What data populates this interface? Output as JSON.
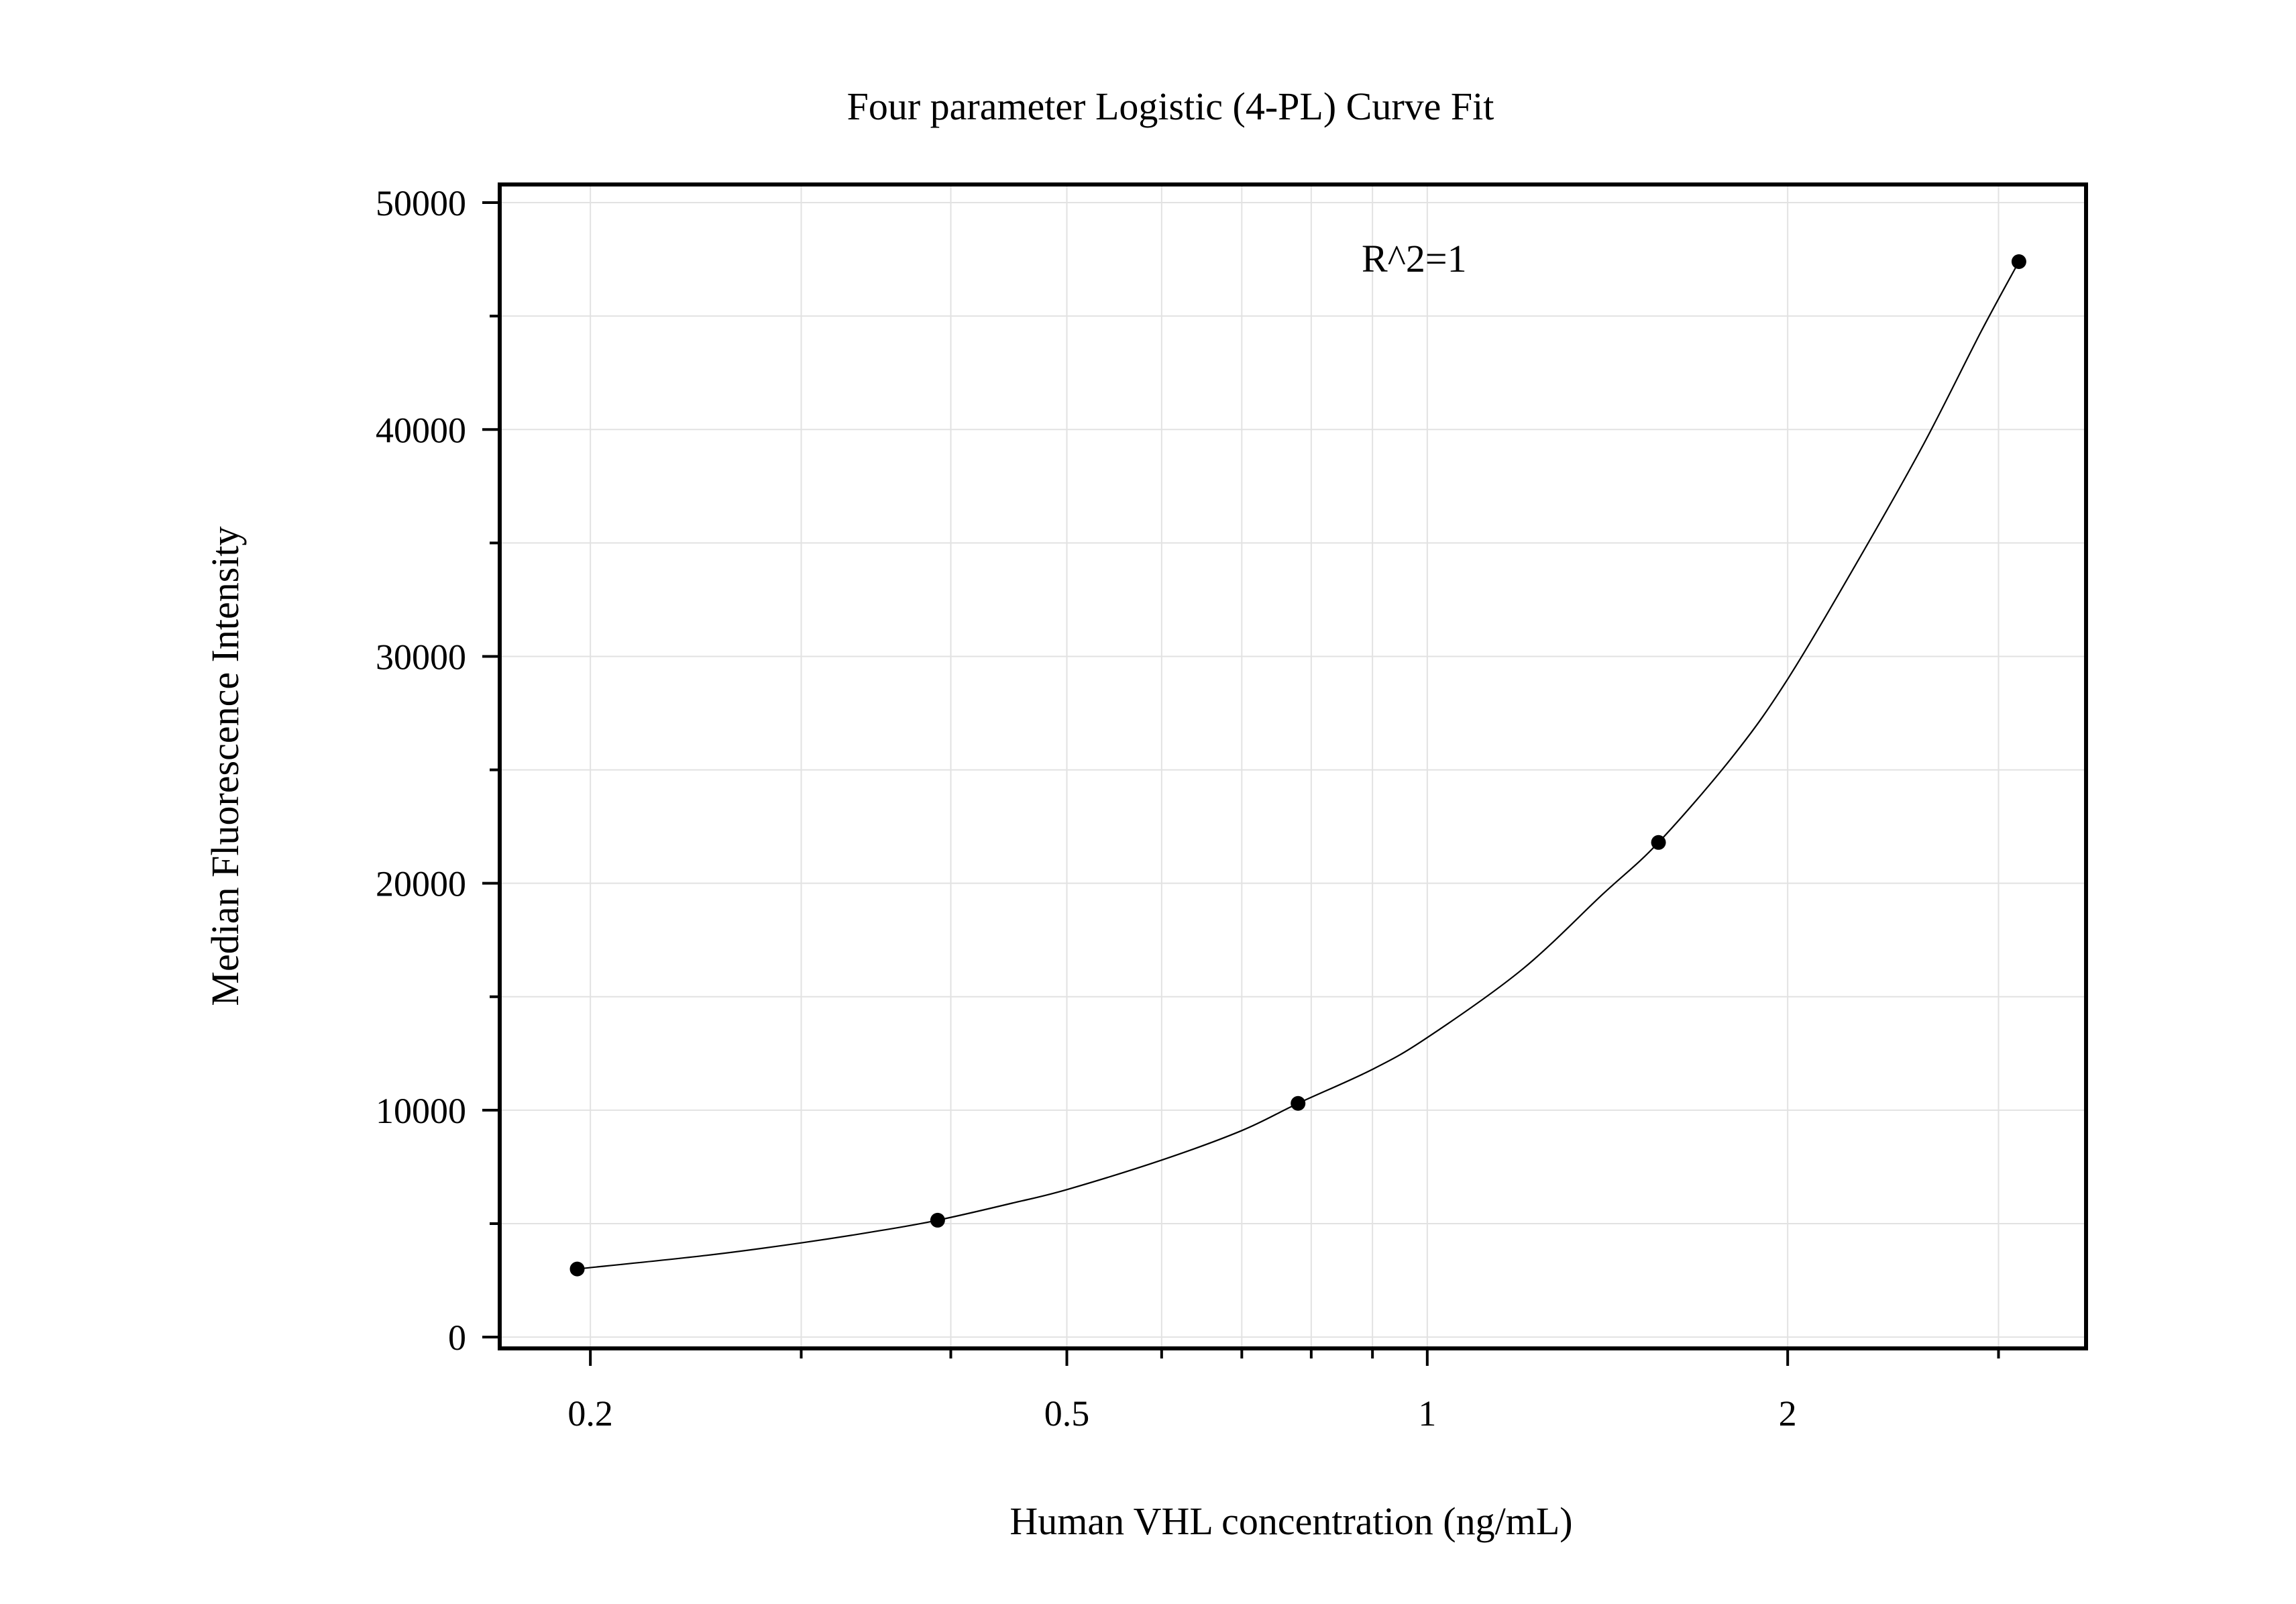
{
  "chart_data": {
    "type": "scatter",
    "title": "Four parameter Logistic (4-PL) Curve Fit",
    "xlabel": "Human VHL concentration (ng/mL)",
    "ylabel": "Median Fluorescence Intensity",
    "annotation": "R^2=1",
    "x_scale": "log",
    "xlim": [
      0.168,
      3.55
    ],
    "ylim": [
      -500,
      50800
    ],
    "x_ticks": [
      {
        "value": 0.2,
        "label": "0.2"
      },
      {
        "value": 0.5,
        "label": "0.5"
      },
      {
        "value": 1,
        "label": "1"
      },
      {
        "value": 2,
        "label": "2"
      }
    ],
    "x_minor_ticks": [
      0.3,
      0.4,
      0.6,
      0.7,
      0.8,
      0.9,
      3
    ],
    "y_ticks": [
      {
        "value": 0,
        "label": "0"
      },
      {
        "value": 10000,
        "label": "10000"
      },
      {
        "value": 20000,
        "label": "20000"
      },
      {
        "value": 30000,
        "label": "30000"
      },
      {
        "value": 40000,
        "label": "40000"
      },
      {
        "value": 50000,
        "label": "50000"
      }
    ],
    "y_minor_ticks": [
      5000,
      15000,
      25000,
      35000,
      45000
    ],
    "grid": true,
    "points": [
      {
        "x": 0.195,
        "y": 3000
      },
      {
        "x": 0.39,
        "y": 5150
      },
      {
        "x": 0.78,
        "y": 10300
      },
      {
        "x": 1.56,
        "y": 21800
      },
      {
        "x": 3.12,
        "y": 47400
      }
    ],
    "fit_curve": [
      {
        "x": 0.195,
        "y": 3000
      },
      {
        "x": 0.25,
        "y": 3600
      },
      {
        "x": 0.3,
        "y": 4150
      },
      {
        "x": 0.35,
        "y": 4700
      },
      {
        "x": 0.39,
        "y": 5150
      },
      {
        "x": 0.45,
        "y": 5900
      },
      {
        "x": 0.5,
        "y": 6500
      },
      {
        "x": 0.6,
        "y": 7800
      },
      {
        "x": 0.7,
        "y": 9100
      },
      {
        "x": 0.78,
        "y": 10300
      },
      {
        "x": 0.9,
        "y": 11800
      },
      {
        "x": 1,
        "y": 13200
      },
      {
        "x": 1.2,
        "y": 16200
      },
      {
        "x": 1.4,
        "y": 19500
      },
      {
        "x": 1.56,
        "y": 21800
      },
      {
        "x": 1.8,
        "y": 25600
      },
      {
        "x": 2,
        "y": 29000
      },
      {
        "x": 2.3,
        "y": 34400
      },
      {
        "x": 2.6,
        "y": 39400
      },
      {
        "x": 2.9,
        "y": 44300
      },
      {
        "x": 3.12,
        "y": 47400
      }
    ]
  }
}
